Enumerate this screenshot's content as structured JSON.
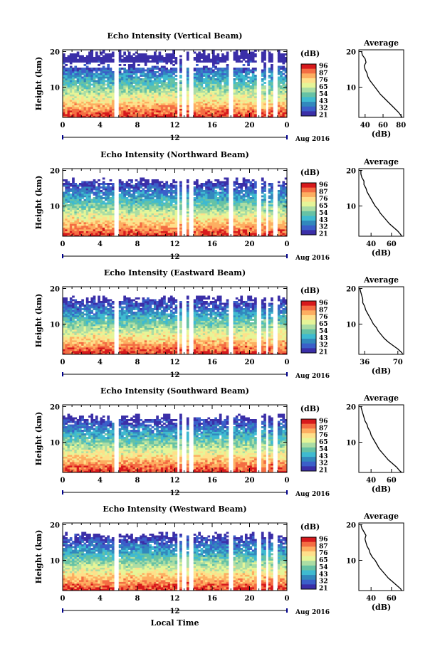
{
  "chart_data": {
    "type": "heatmap",
    "xlabel": "Local Time",
    "ylabel": "Height (km)",
    "date_label": "Aug 2016",
    "noon_label": "12",
    "x_ticks": [
      "0",
      "4",
      "8",
      "12",
      "16",
      "20",
      "0"
    ],
    "y_ticks": [
      "20",
      "10"
    ],
    "xlim": [
      0,
      24
    ],
    "ylim": [
      1.5,
      20.5
    ],
    "colorbar": {
      "unit": "(dB)",
      "ticks": [
        "96",
        "87",
        "76",
        "65",
        "54",
        "43",
        "32",
        "21"
      ],
      "colors": [
        "#d7191c",
        "#f46d43",
        "#fdae61",
        "#fee08b",
        "#e6f598",
        "#abdda4",
        "#66c2a5",
        "#3fbad0",
        "#3288bd",
        "#3b5fc9",
        "#3b2fa8"
      ]
    },
    "average_panel": {
      "title": "Average",
      "xlabel": "(dB)",
      "y_ticks": [
        "20",
        "10"
      ]
    },
    "gaps_hours": [
      5.8,
      12.4,
      13.0,
      13.8,
      18.0,
      21.0,
      21.9,
      22.8
    ],
    "panels": [
      {
        "title": "Echo Intensity (Vertical Beam)",
        "avg_ticks": [
          "40",
          "60",
          "80"
        ],
        "avg_xlim": [
          33,
          83
        ],
        "avg_profile": {
          "height_km": [
            1.5,
            2,
            3,
            4,
            5,
            6,
            7,
            8,
            9,
            10,
            11,
            12,
            13,
            14,
            15,
            16,
            17,
            18,
            19,
            20
          ],
          "db": [
            81,
            80,
            77,
            73,
            69,
            65,
            61,
            57,
            54,
            51,
            48,
            45,
            43,
            42,
            40,
            39,
            41,
            40,
            37,
            36
          ]
        }
      },
      {
        "title": "Echo Intensity (Northward Beam)",
        "avg_ticks": [
          "40",
          "60"
        ],
        "avg_xlim": [
          28,
          72
        ],
        "avg_profile": {
          "height_km": [
            1.5,
            2,
            3,
            4,
            5,
            6,
            7,
            8,
            9,
            10,
            11,
            12,
            13,
            14,
            15,
            16,
            17,
            18,
            19,
            20
          ],
          "db": [
            70,
            69,
            66,
            62,
            58,
            55,
            52,
            49,
            47,
            44,
            42,
            40,
            38,
            36,
            35,
            33,
            33,
            31,
            30,
            30
          ]
        }
      },
      {
        "title": "Echo Intensity (Eastward Beam)",
        "avg_ticks": [
          "36",
          "70"
        ],
        "avg_xlim": [
          30,
          76
        ],
        "avg_profile": {
          "height_km": [
            1.5,
            2,
            3,
            4,
            5,
            6,
            7,
            8,
            9,
            10,
            11,
            12,
            13,
            14,
            15,
            16,
            17,
            18,
            19,
            20
          ],
          "db": [
            75,
            74,
            70,
            65,
            60,
            56,
            53,
            50,
            48,
            45,
            43,
            41,
            39,
            37,
            36,
            34,
            34,
            33,
            32,
            31
          ]
        }
      },
      {
        "title": "Echo Intensity (Southward Beam)",
        "avg_ticks": [
          "40",
          "60"
        ],
        "avg_xlim": [
          28,
          72
        ],
        "avg_profile": {
          "height_km": [
            1.5,
            2,
            3,
            4,
            5,
            6,
            7,
            8,
            9,
            10,
            11,
            12,
            13,
            14,
            15,
            16,
            17,
            18,
            19,
            20
          ],
          "db": [
            70,
            68,
            65,
            61,
            57,
            54,
            51,
            48,
            46,
            44,
            42,
            40,
            39,
            37,
            36,
            34,
            33,
            32,
            31,
            30
          ]
        }
      },
      {
        "title": "Echo Intensity (Westward Beam)",
        "avg_ticks": [
          "40",
          "60"
        ],
        "avg_xlim": [
          28,
          72
        ],
        "avg_profile": {
          "height_km": [
            1.5,
            2,
            3,
            4,
            5,
            6,
            7,
            8,
            9,
            10,
            11,
            12,
            13,
            14,
            15,
            16,
            17,
            18,
            19,
            20
          ],
          "db": [
            70,
            69,
            65,
            61,
            57,
            54,
            51,
            48,
            46,
            44,
            41,
            39,
            38,
            36,
            35,
            34,
            35,
            33,
            31,
            30
          ]
        }
      }
    ]
  }
}
